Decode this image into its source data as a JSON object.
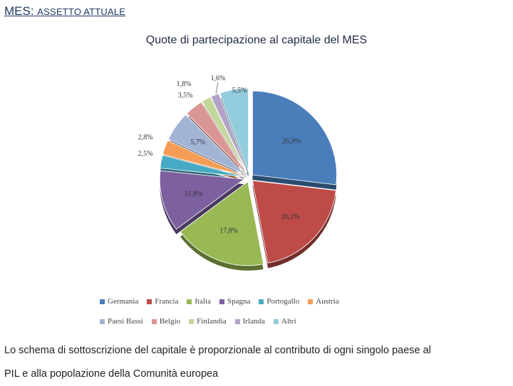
{
  "header": {
    "title_main": "MES:",
    "title_sub": "ASSETTO ATTUALE"
  },
  "chart_data": {
    "type": "pie",
    "title": "Quote di partecipazione al capitale del MES",
    "categories": [
      "Germania",
      "Francia",
      "Italia",
      "Spagna",
      "Portogallo",
      "Austria",
      "Paesi Bassi",
      "Belgio",
      "Finlandia",
      "Irlanda",
      "Altri"
    ],
    "values": [
      26.9,
      20.2,
      17.8,
      11.8,
      2.5,
      2.8,
      5.7,
      3.5,
      1.8,
      1.6,
      5.5
    ],
    "labels": [
      "26,9%",
      "20,2%",
      "17,8%",
      "11,8%",
      "2,5%",
      "2,8%",
      "5,7%",
      "3,5%",
      "1,8%",
      "1,6%",
      "5,5%"
    ],
    "colors": [
      "#4a7ebb",
      "#be4b48",
      "#98b954",
      "#7d60a0",
      "#46aac4",
      "#f59d56",
      "#a2b4d6",
      "#d99694",
      "#c3d69b",
      "#b3a2c7",
      "#93cddd"
    ],
    "legend_position": "bottom",
    "exploded": true
  },
  "caption": {
    "line1": "Lo schema di sottoscrizione del capitale è proporzionale al contributo di ogni singolo paese al",
    "line2": "PIL e alla popolazione della Comunità europea"
  }
}
